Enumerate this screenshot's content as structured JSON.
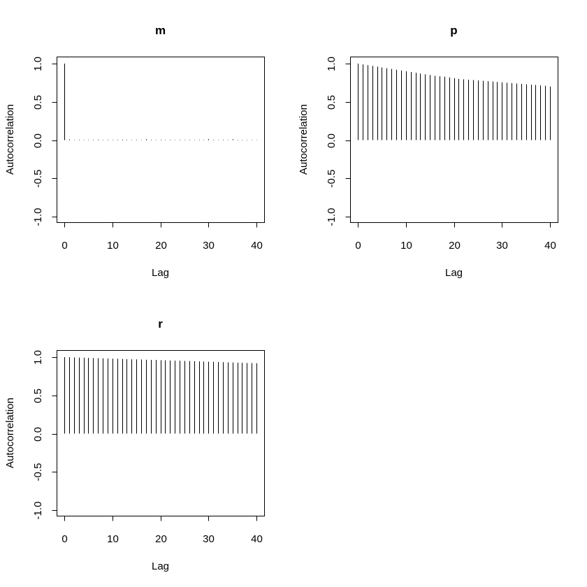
{
  "chart_data": [
    {
      "type": "bar",
      "title": "m",
      "xlabel": "Lag",
      "ylabel": "Autocorrelation",
      "xlim": [
        0,
        40
      ],
      "ylim": [
        -1,
        1
      ],
      "xticks": [
        "0",
        "10",
        "20",
        "30",
        "40"
      ],
      "yticks": [
        "-1.0",
        "-0.5",
        "0.0",
        "0.5",
        "1.0"
      ],
      "x": [
        0,
        1,
        2,
        3,
        4,
        5,
        6,
        7,
        8,
        9,
        10,
        11,
        12,
        13,
        14,
        15,
        16,
        17,
        18,
        19,
        20,
        21,
        22,
        23,
        24,
        25,
        26,
        27,
        28,
        29,
        30,
        31,
        32,
        33,
        34,
        35,
        36,
        37,
        38,
        39,
        40
      ],
      "values": [
        1.0,
        0.01,
        0.005,
        0.006,
        0.005,
        0.004,
        0.006,
        0.008,
        0.005,
        0.006,
        0.005,
        0.006,
        0.008,
        0.006,
        0.005,
        0.006,
        0.005,
        0.012,
        0.006,
        0.005,
        0.006,
        0.005,
        0.006,
        0.005,
        0.006,
        0.005,
        0.006,
        0.005,
        0.006,
        0.005,
        0.012,
        0.006,
        0.005,
        0.006,
        0.005,
        0.012,
        -0.005,
        0.004,
        0.005,
        0.004,
        0.003
      ]
    },
    {
      "type": "bar",
      "title": "p",
      "xlabel": "Lag",
      "ylabel": "Autocorrelation",
      "xlim": [
        0,
        40
      ],
      "ylim": [
        -1,
        1
      ],
      "xticks": [
        "0",
        "10",
        "20",
        "30",
        "40"
      ],
      "yticks": [
        "-1.0",
        "-0.5",
        "0.0",
        "0.5",
        "1.0"
      ],
      "x": [
        0,
        1,
        2,
        3,
        4,
        5,
        6,
        7,
        8,
        9,
        10,
        11,
        12,
        13,
        14,
        15,
        16,
        17,
        18,
        19,
        20,
        21,
        22,
        23,
        24,
        25,
        26,
        27,
        28,
        29,
        30,
        31,
        32,
        33,
        34,
        35,
        36,
        37,
        38,
        39,
        40
      ],
      "values": [
        1.0,
        0.99,
        0.98,
        0.97,
        0.96,
        0.95,
        0.94,
        0.93,
        0.92,
        0.91,
        0.9,
        0.89,
        0.88,
        0.87,
        0.86,
        0.85,
        0.84,
        0.835,
        0.83,
        0.82,
        0.81,
        0.8,
        0.795,
        0.79,
        0.785,
        0.78,
        0.775,
        0.77,
        0.765,
        0.76,
        0.755,
        0.75,
        0.745,
        0.74,
        0.735,
        0.73,
        0.725,
        0.72,
        0.715,
        0.71,
        0.7
      ]
    },
    {
      "type": "bar",
      "title": "r",
      "xlabel": "Lag",
      "ylabel": "Autocorrelation",
      "xlim": [
        0,
        40
      ],
      "ylim": [
        -1,
        1
      ],
      "xticks": [
        "0",
        "10",
        "20",
        "30",
        "40"
      ],
      "yticks": [
        "-1.0",
        "-0.5",
        "0.0",
        "0.5",
        "1.0"
      ],
      "x": [
        0,
        1,
        2,
        3,
        4,
        5,
        6,
        7,
        8,
        9,
        10,
        11,
        12,
        13,
        14,
        15,
        16,
        17,
        18,
        19,
        20,
        21,
        22,
        23,
        24,
        25,
        26,
        27,
        28,
        29,
        30,
        31,
        32,
        33,
        34,
        35,
        36,
        37,
        38,
        39,
        40
      ],
      "values": [
        1.0,
        0.998,
        0.996,
        0.994,
        0.992,
        0.99,
        0.988,
        0.986,
        0.984,
        0.982,
        0.98,
        0.978,
        0.976,
        0.974,
        0.972,
        0.97,
        0.968,
        0.966,
        0.964,
        0.962,
        0.96,
        0.958,
        0.956,
        0.954,
        0.952,
        0.95,
        0.948,
        0.946,
        0.944,
        0.942,
        0.94,
        0.938,
        0.936,
        0.934,
        0.932,
        0.93,
        0.928,
        0.926,
        0.924,
        0.922,
        0.92
      ]
    }
  ]
}
